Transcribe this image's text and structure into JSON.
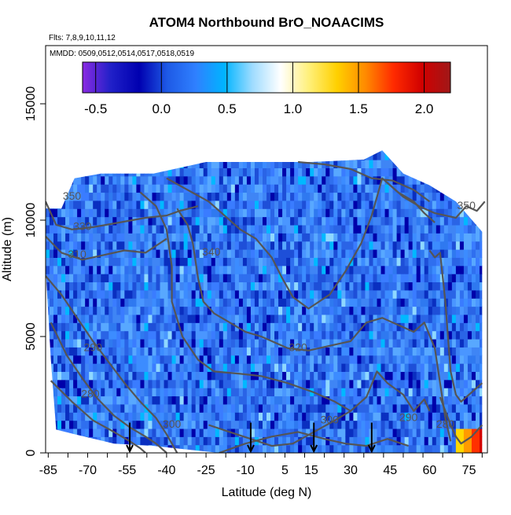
{
  "chart_data": {
    "type": "heatmap",
    "title": "ATOM4 Northbound BrO_NOAACIMS",
    "subtitle_flights": "Flts: 7,8,9,10,11,12",
    "subtitle_dates": "MMDD: 0509,0512,0514,0517,0518,0519",
    "xlabel": "Latitude (deg N)",
    "ylabel": "Altitude (m)",
    "xlim": [
      -86,
      82
    ],
    "ylim": [
      0,
      17500
    ],
    "x_ticks": [
      -85,
      -70,
      -55,
      -40,
      -25,
      -10,
      5,
      15,
      30,
      45,
      60,
      75
    ],
    "x_tick_labels": [
      "-85",
      "-70",
      "-55",
      "-40",
      "-25",
      "-10",
      "5",
      "15",
      "30",
      "45",
      "60",
      "75"
    ],
    "y_ticks": [
      0,
      5000,
      10000,
      15000
    ],
    "y_tick_labels": [
      "0",
      "5000",
      "10000",
      "15000"
    ],
    "colorbar": {
      "range": [
        -0.6,
        2.2
      ],
      "ticks": [
        -0.5,
        0.0,
        0.5,
        1.0,
        1.5,
        2.0
      ],
      "tick_labels": [
        "-0.5",
        "0.0",
        "0.5",
        "1.0",
        "1.5",
        "2.0"
      ],
      "colors": [
        "#8a2be2",
        "#2020c8",
        "#0000b0",
        "#1e5ae6",
        "#2f80ff",
        "#00b4ff",
        "#9fdcff",
        "#ffffff",
        "#fff07a",
        "#ffd000",
        "#ff8a00",
        "#ff2a00",
        "#d00000",
        "#a01818"
      ]
    },
    "contour_labels": [
      "350",
      "330",
      "310",
      "340",
      "290",
      "280",
      "300",
      "320",
      "300",
      "290",
      "280",
      "350"
    ],
    "flight_arrows_latitude": [
      -54,
      -8,
      16,
      38
    ],
    "data_extent_top_altitude": [
      [
        -86,
        10500
      ],
      [
        -80,
        10500
      ],
      [
        -75,
        11800
      ],
      [
        -65,
        12000
      ],
      [
        -45,
        12000
      ],
      [
        -25,
        12500
      ],
      [
        -5,
        12500
      ],
      [
        15,
        12500
      ],
      [
        35,
        12600
      ],
      [
        42,
        13000
      ],
      [
        50,
        12000
      ],
      [
        60,
        11500
      ],
      [
        70,
        10800
      ],
      [
        80,
        9500
      ]
    ],
    "data_extent_bottom_altitude": [
      [
        -86,
        8000
      ],
      [
        -84,
        4000
      ],
      [
        -82,
        1000
      ],
      [
        -75,
        800
      ],
      [
        -60,
        400
      ],
      [
        -45,
        300
      ],
      [
        -20,
        0
      ],
      [
        0,
        0
      ],
      [
        20,
        0
      ],
      [
        40,
        0
      ],
      [
        60,
        0
      ],
      [
        80,
        0
      ]
    ],
    "high_values_region": {
      "lat_range": [
        70,
        81
      ],
      "alt_range": [
        0,
        800
      ],
      "values": [
        1.3,
        1.7,
        2.0,
        2.1
      ]
    }
  }
}
